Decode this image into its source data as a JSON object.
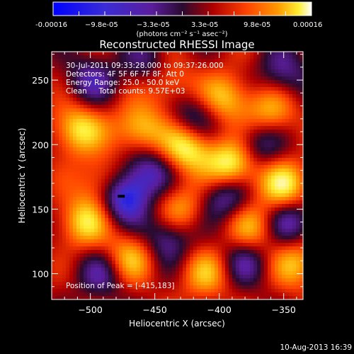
{
  "colorbar": {
    "tick_labels": [
      "-0.00016",
      "−9.8e-05",
      "−3.3e-05",
      "3.3e-05",
      "9.8e-05",
      "0.00016"
    ],
    "units_label": "(photons cm⁻² s⁻¹ asec⁻²)",
    "range": [
      -0.00016,
      0.00016
    ]
  },
  "plot": {
    "info_lines": [
      "30-Jul-2011 09:33:28.000 to 09:37:26.000",
      "Detectors: 4F 5F 6F 7F 8F, Att 0",
      "Energy Range: 25.0 - 50.0 keV",
      "Clean     Total counts: 9.57E+03"
    ],
    "peak_label": "Position of Peak = [-415,183]"
  },
  "footer": {
    "date": "10-Aug-2013 16:39"
  },
  "chart_data": {
    "type": "heatmap",
    "title": "Reconstructed RHESSI Image",
    "xlabel": "Heliocentric X (arcsec)",
    "ylabel": "Heliocentric Y (arcsec)",
    "xlim": [
      -530,
      -335
    ],
    "ylim": [
      80,
      272
    ],
    "xticks": [
      -500,
      -450,
      -400,
      -350
    ],
    "xtick_labels": [
      "−500",
      "−450",
      "−400",
      "−350"
    ],
    "yticks": [
      100,
      150,
      200,
      250
    ],
    "ytick_labels": [
      "100",
      "150",
      "200",
      "250"
    ],
    "colormap": "RHESSI red-temperature",
    "colors": {
      "stops": [
        "#0000ff",
        "#3a2cd6",
        "#5a1e9c",
        "#2a0a30",
        "#b00000",
        "#ff4400",
        "#ff9a00",
        "#ffee33",
        "#ffffff"
      ]
    },
    "peak_position": [
      -415,
      183
    ],
    "blobs": [
      {
        "x": -390,
        "y": 184,
        "v": 1.0
      },
      {
        "x": -425,
        "y": 198,
        "v": 0.9
      },
      {
        "x": -350,
        "y": 168,
        "v": 0.8
      },
      {
        "x": -510,
        "y": 212,
        "v": 0.75
      },
      {
        "x": -462,
        "y": 212,
        "v": 0.7
      },
      {
        "x": -395,
        "y": 236,
        "v": 0.65
      },
      {
        "x": -490,
        "y": 170,
        "v": 0.6
      },
      {
        "x": -505,
        "y": 140,
        "v": 0.7
      },
      {
        "x": -430,
        "y": 150,
        "v": 0.55
      },
      {
        "x": -375,
        "y": 135,
        "v": 0.6
      },
      {
        "x": -470,
        "y": 112,
        "v": 0.65
      },
      {
        "x": -410,
        "y": 100,
        "v": 0.55
      },
      {
        "x": -340,
        "y": 108,
        "v": 0.6
      },
      {
        "x": -440,
        "y": 248,
        "v": 0.5
      },
      {
        "x": -360,
        "y": 225,
        "v": 0.6
      },
      {
        "x": -475,
        "y": 160,
        "v": -1.0
      },
      {
        "x": -455,
        "y": 180,
        "v": -0.6
      },
      {
        "x": -440,
        "y": 128,
        "v": -0.6
      },
      {
        "x": -395,
        "y": 160,
        "v": -0.65
      },
      {
        "x": -370,
        "y": 200,
        "v": -0.55
      },
      {
        "x": -500,
        "y": 250,
        "v": -0.5
      },
      {
        "x": -420,
        "y": 220,
        "v": -0.55
      },
      {
        "x": -345,
        "y": 140,
        "v": -0.6
      },
      {
        "x": -490,
        "y": 100,
        "v": -0.5
      },
      {
        "x": -380,
        "y": 110,
        "v": -0.5
      },
      {
        "x": -455,
        "y": 262,
        "v": -0.45
      },
      {
        "x": -350,
        "y": 255,
        "v": -0.5
      }
    ]
  }
}
